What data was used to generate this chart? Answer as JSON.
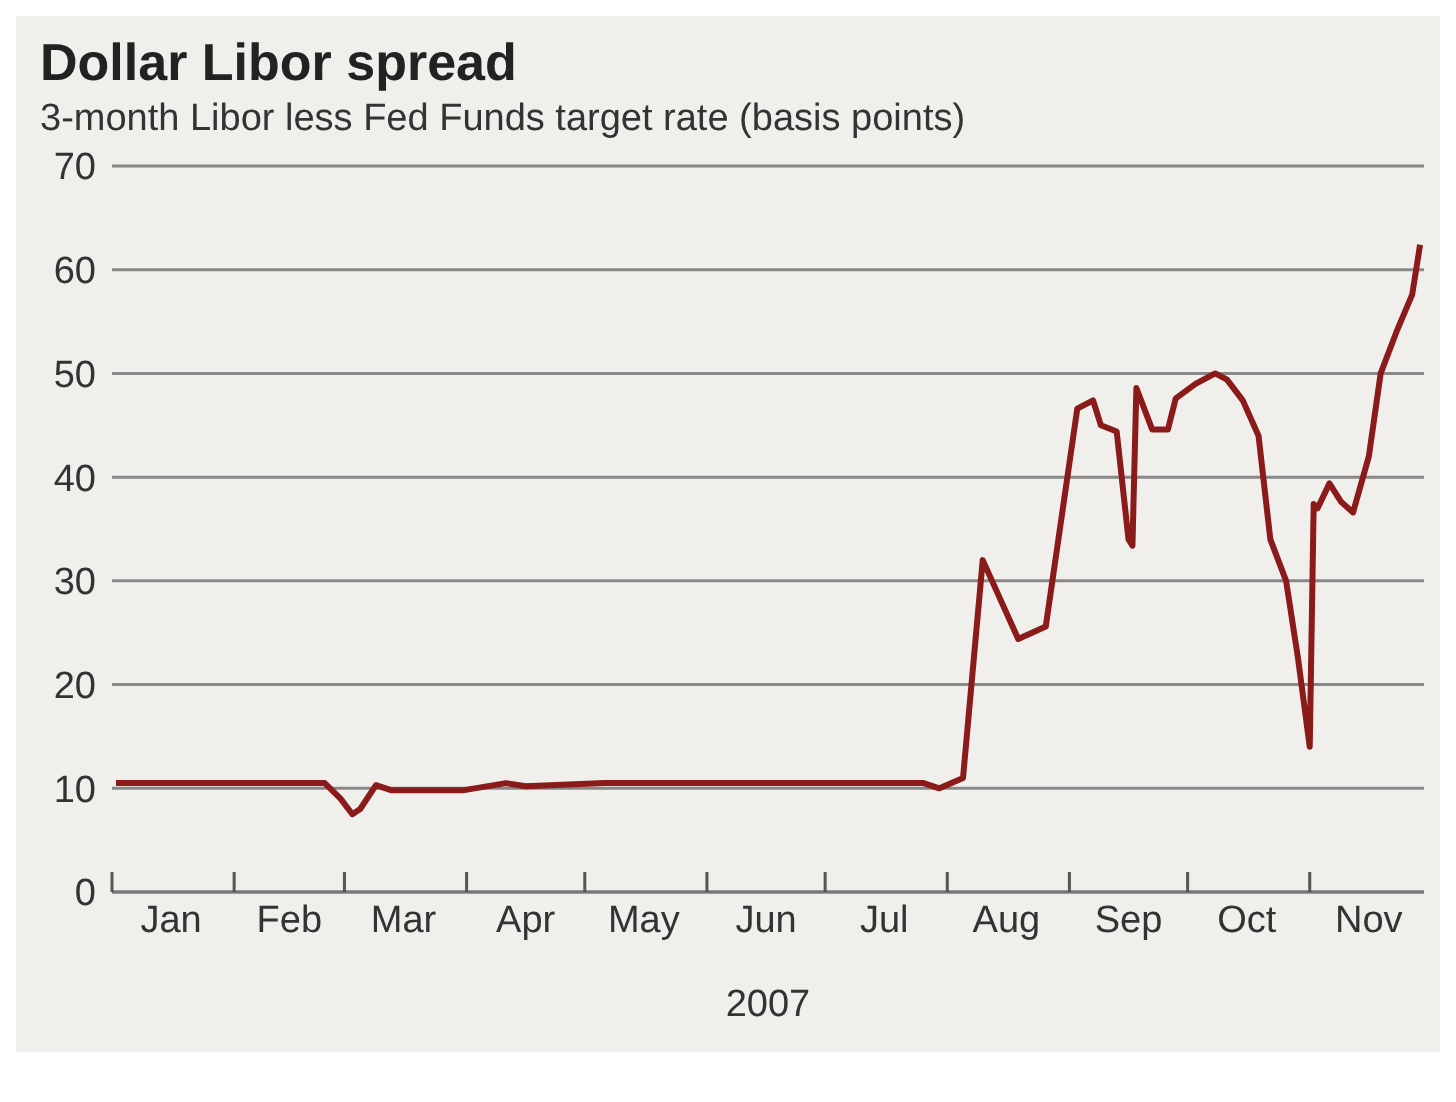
{
  "chart_data": {
    "type": "line",
    "title": "Dollar Libor spread",
    "subtitle": "3-month Libor less Fed Funds target rate  (basis points)",
    "xlabel": "2007",
    "x": [
      "2007-01-02",
      "2007-02-24",
      "2007-02-28",
      "2007-03-03",
      "2007-03-05",
      "2007-03-09",
      "2007-03-13",
      "2007-03-31",
      "2007-04-11",
      "2007-04-16",
      "2007-05-06",
      "2007-07-26",
      "2007-07-30",
      "2007-08-05",
      "2007-08-10",
      "2007-08-19",
      "2007-08-26",
      "2007-09-03",
      "2007-09-07",
      "2007-09-09",
      "2007-09-13",
      "2007-09-16",
      "2007-09-17",
      "2007-09-18",
      "2007-09-22",
      "2007-09-26",
      "2007-09-28",
      "2007-10-03",
      "2007-10-08",
      "2007-10-11",
      "2007-10-15",
      "2007-10-19",
      "2007-10-22",
      "2007-10-26",
      "2007-10-29",
      "2007-11-01",
      "2007-11-02",
      "2007-11-03",
      "2007-11-06",
      "2007-11-09",
      "2007-11-12",
      "2007-11-16",
      "2007-11-19",
      "2007-11-23",
      "2007-11-27",
      "2007-11-29"
    ],
    "series": [
      {
        "color": "#8b1a1a",
        "values": [
          10.5,
          10.5,
          9,
          7.5,
          8,
          10.3,
          9.8,
          9.8,
          10.5,
          10.2,
          10.5,
          10.5,
          10,
          11,
          32,
          24.4,
          25.6,
          46.6,
          47.4,
          45,
          44.4,
          34,
          33.4,
          48.6,
          44.6,
          44.6,
          47.6,
          49,
          50,
          49.4,
          47.4,
          44,
          34,
          30,
          22.6,
          14,
          37.4,
          37,
          39.4,
          37.6,
          36.6,
          42,
          50,
          54,
          57.6,
          62.4
        ]
      }
    ],
    "xlim": [
      "2007-01-01",
      "2007-11-30"
    ],
    "xticks": [
      {
        "value": "2007-01-01",
        "label": null
      },
      {
        "value": "2007-01-16",
        "label": "Jan"
      },
      {
        "value": "2007-02-01",
        "label": null
      },
      {
        "value": "2007-02-15",
        "label": "Feb"
      },
      {
        "value": "2007-03-01",
        "label": null
      },
      {
        "value": "2007-03-16",
        "label": "Mar"
      },
      {
        "value": "2007-04-01",
        "label": null
      },
      {
        "value": "2007-04-16",
        "label": "Apr"
      },
      {
        "value": "2007-05-01",
        "label": null
      },
      {
        "value": "2007-05-16",
        "label": "May"
      },
      {
        "value": "2007-06-01",
        "label": null
      },
      {
        "value": "2007-06-16",
        "label": "Jun"
      },
      {
        "value": "2007-07-01",
        "label": null
      },
      {
        "value": "2007-07-16",
        "label": "Jul"
      },
      {
        "value": "2007-08-01",
        "label": null
      },
      {
        "value": "2007-08-16",
        "label": "Aug"
      },
      {
        "value": "2007-09-01",
        "label": null
      },
      {
        "value": "2007-09-16",
        "label": "Sep"
      },
      {
        "value": "2007-10-01",
        "label": null
      },
      {
        "value": "2007-10-16",
        "label": "Oct"
      },
      {
        "value": "2007-11-01",
        "label": null
      },
      {
        "value": "2007-11-16",
        "label": "Nov"
      }
    ],
    "ylim": [
      0,
      70
    ],
    "yticks": [
      0,
      10,
      20,
      30,
      40,
      50,
      60,
      70
    ],
    "grid": "y",
    "legend": false,
    "marker": "none",
    "line_style": "solid"
  }
}
